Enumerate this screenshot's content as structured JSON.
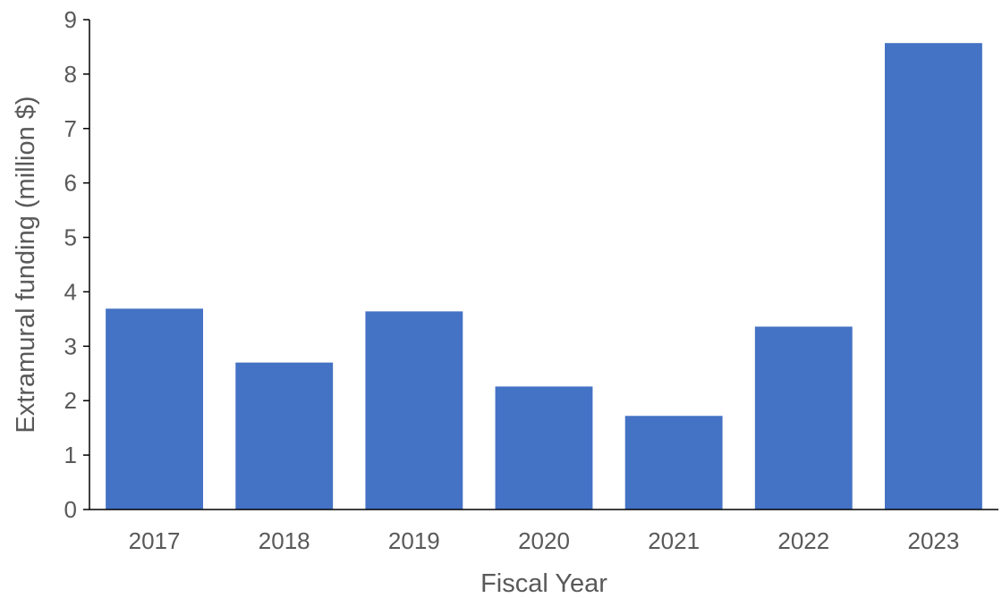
{
  "chart_data": {
    "type": "bar",
    "categories": [
      "2017",
      "2018",
      "2019",
      "2020",
      "2021",
      "2022",
      "2023"
    ],
    "values": [
      3.69,
      2.7,
      3.64,
      2.26,
      1.72,
      3.36,
      8.57
    ],
    "title": "",
    "xlabel": "Fiscal Year",
    "ylabel": "Extramural funding (million $)",
    "ylim": [
      0,
      9
    ],
    "yticks": [
      "0",
      "1",
      "2",
      "3",
      "4",
      "5",
      "6",
      "7",
      "8",
      "9"
    ],
    "grid": false,
    "legend": "none",
    "colors": {
      "bar": "#4472C4",
      "axis": "#000000",
      "text": "#595959"
    }
  }
}
